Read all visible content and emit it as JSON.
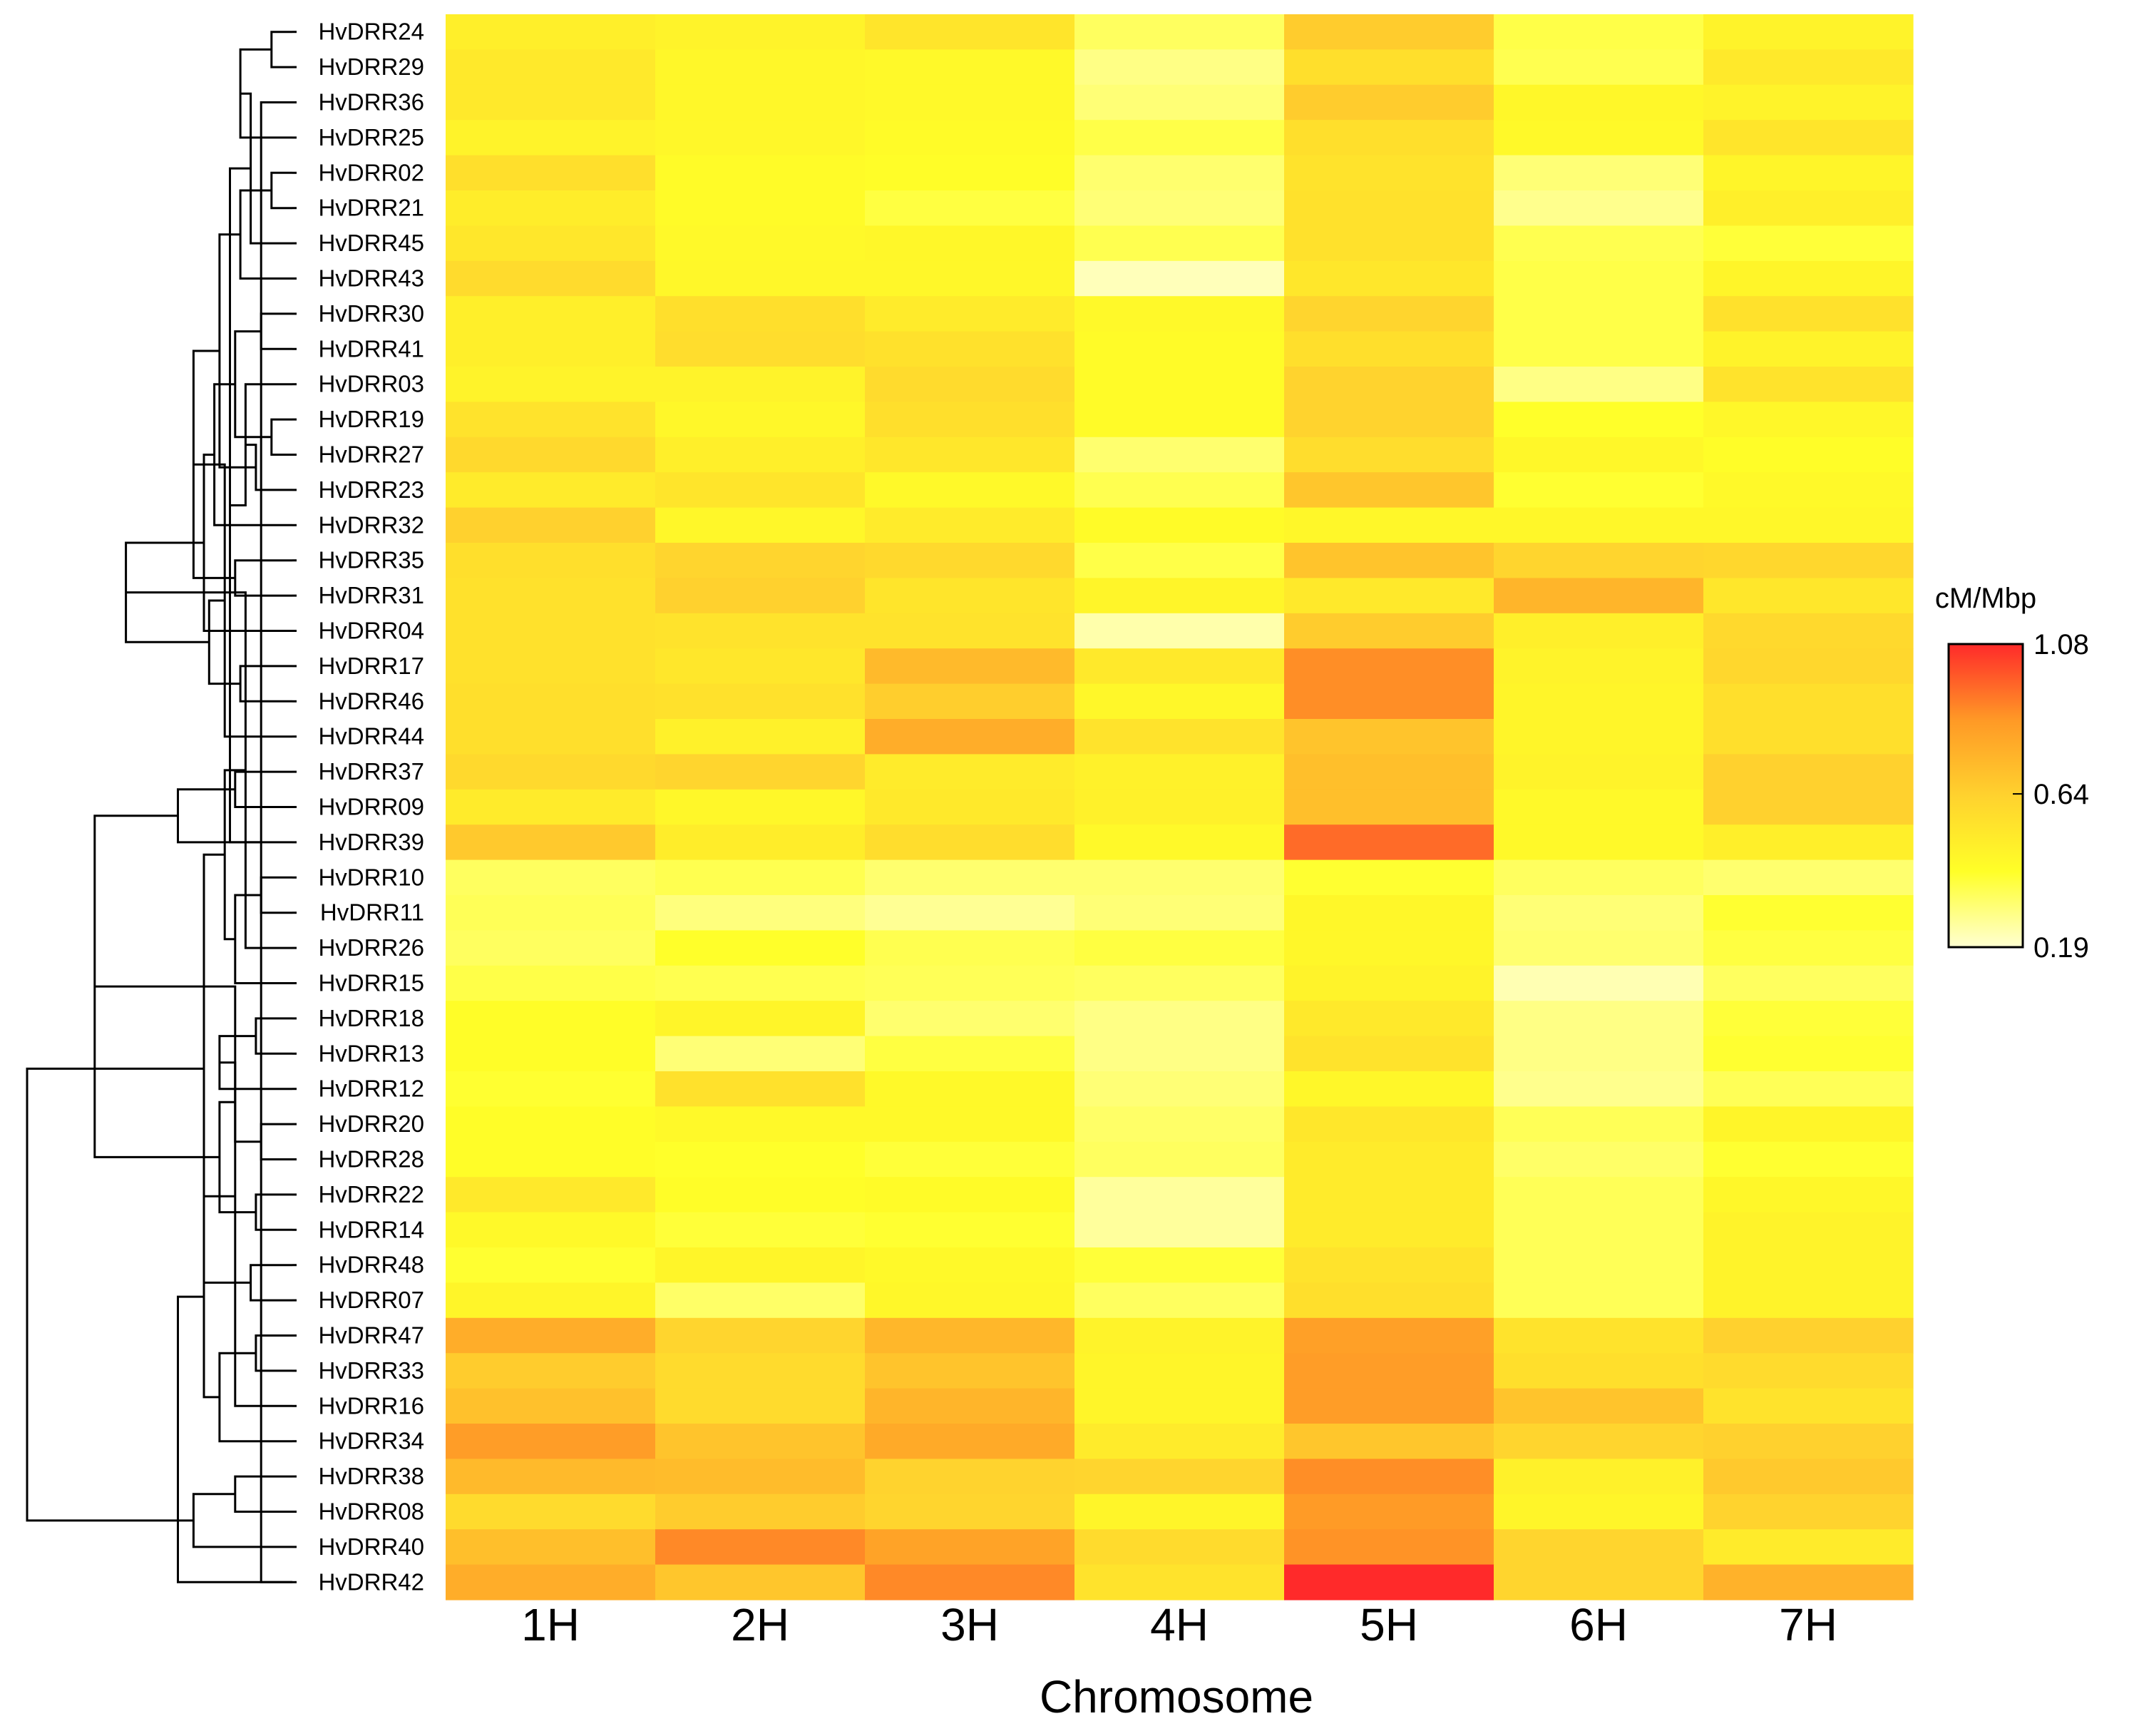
{
  "chart_data": {
    "type": "heatmap",
    "xlabel": "Chromosome",
    "columns": [
      "1H",
      "2H",
      "3H",
      "4H",
      "5H",
      "6H",
      "7H"
    ],
    "rows": [
      "HvDRR24",
      "HvDRR29",
      "HvDRR36",
      "HvDRR25",
      "HvDRR02",
      "HvDRR21",
      "HvDRR45",
      "HvDRR43",
      "HvDRR30",
      "HvDRR41",
      "HvDRR03",
      "HvDRR19",
      "HvDRR27",
      "HvDRR23",
      "HvDRR32",
      "HvDRR35",
      "HvDRR31",
      "HvDRR04",
      "HvDRR17",
      "HvDRR46",
      "HvDRR44",
      "HvDRR37",
      "HvDRR09",
      "HvDRR39",
      "HvDRR10",
      "HvDRR11",
      "HvDRR26",
      "HvDRR15",
      "HvDRR18",
      "HvDRR13",
      "HvDRR12",
      "HvDRR20",
      "HvDRR28",
      "HvDRR22",
      "HvDRR14",
      "HvDRR48",
      "HvDRR07",
      "HvDRR47",
      "HvDRR33",
      "HvDRR16",
      "HvDRR34",
      "HvDRR38",
      "HvDRR08",
      "HvDRR40",
      "HvDRR42"
    ],
    "values": [
      [
        0.49,
        0.47,
        0.54,
        0.34,
        0.66,
        0.37,
        0.47
      ],
      [
        0.52,
        0.45,
        0.44,
        0.29,
        0.57,
        0.36,
        0.52
      ],
      [
        0.52,
        0.45,
        0.44,
        0.31,
        0.66,
        0.45,
        0.47
      ],
      [
        0.47,
        0.45,
        0.43,
        0.37,
        0.57,
        0.44,
        0.54
      ],
      [
        0.57,
        0.43,
        0.42,
        0.32,
        0.55,
        0.31,
        0.46
      ],
      [
        0.5,
        0.43,
        0.38,
        0.31,
        0.56,
        0.28,
        0.49
      ],
      [
        0.53,
        0.44,
        0.45,
        0.36,
        0.56,
        0.36,
        0.39
      ],
      [
        0.59,
        0.45,
        0.45,
        0.22,
        0.53,
        0.37,
        0.46
      ],
      [
        0.49,
        0.57,
        0.51,
        0.44,
        0.62,
        0.37,
        0.56
      ],
      [
        0.49,
        0.58,
        0.56,
        0.43,
        0.57,
        0.37,
        0.47
      ],
      [
        0.47,
        0.47,
        0.59,
        0.43,
        0.63,
        0.29,
        0.55
      ],
      [
        0.55,
        0.45,
        0.57,
        0.43,
        0.63,
        0.41,
        0.45
      ],
      [
        0.6,
        0.49,
        0.53,
        0.32,
        0.58,
        0.45,
        0.42
      ],
      [
        0.51,
        0.54,
        0.44,
        0.36,
        0.68,
        0.4,
        0.44
      ],
      [
        0.64,
        0.45,
        0.51,
        0.43,
        0.45,
        0.45,
        0.45
      ],
      [
        0.57,
        0.62,
        0.6,
        0.37,
        0.69,
        0.62,
        0.61
      ],
      [
        0.56,
        0.64,
        0.54,
        0.46,
        0.52,
        0.75,
        0.53
      ],
      [
        0.56,
        0.55,
        0.55,
        0.24,
        0.66,
        0.49,
        0.6
      ],
      [
        0.56,
        0.53,
        0.73,
        0.52,
        0.88,
        0.47,
        0.61
      ],
      [
        0.57,
        0.56,
        0.65,
        0.45,
        0.88,
        0.46,
        0.57
      ],
      [
        0.57,
        0.48,
        0.78,
        0.55,
        0.69,
        0.46,
        0.57
      ],
      [
        0.6,
        0.62,
        0.51,
        0.48,
        0.71,
        0.47,
        0.64
      ],
      [
        0.51,
        0.45,
        0.52,
        0.48,
        0.71,
        0.44,
        0.64
      ],
      [
        0.67,
        0.5,
        0.58,
        0.44,
        0.95,
        0.44,
        0.49
      ],
      [
        0.34,
        0.36,
        0.32,
        0.32,
        0.4,
        0.34,
        0.32
      ],
      [
        0.35,
        0.3,
        0.27,
        0.31,
        0.45,
        0.31,
        0.4
      ],
      [
        0.34,
        0.41,
        0.36,
        0.38,
        0.45,
        0.32,
        0.38
      ],
      [
        0.37,
        0.36,
        0.35,
        0.34,
        0.47,
        0.23,
        0.34
      ],
      [
        0.42,
        0.46,
        0.32,
        0.29,
        0.52,
        0.29,
        0.39
      ],
      [
        0.42,
        0.31,
        0.38,
        0.29,
        0.55,
        0.29,
        0.4
      ],
      [
        0.4,
        0.56,
        0.44,
        0.31,
        0.45,
        0.28,
        0.35
      ],
      [
        0.42,
        0.44,
        0.44,
        0.33,
        0.53,
        0.35,
        0.46
      ],
      [
        0.42,
        0.41,
        0.39,
        0.34,
        0.51,
        0.33,
        0.4
      ],
      [
        0.52,
        0.42,
        0.43,
        0.26,
        0.51,
        0.35,
        0.45
      ],
      [
        0.44,
        0.39,
        0.4,
        0.26,
        0.51,
        0.35,
        0.47
      ],
      [
        0.4,
        0.46,
        0.44,
        0.39,
        0.55,
        0.35,
        0.47
      ],
      [
        0.46,
        0.33,
        0.45,
        0.34,
        0.57,
        0.35,
        0.47
      ],
      [
        0.78,
        0.62,
        0.74,
        0.47,
        0.83,
        0.55,
        0.64
      ],
      [
        0.66,
        0.59,
        0.69,
        0.46,
        0.84,
        0.57,
        0.59
      ],
      [
        0.7,
        0.59,
        0.75,
        0.46,
        0.84,
        0.69,
        0.55
      ],
      [
        0.84,
        0.69,
        0.79,
        0.51,
        0.68,
        0.62,
        0.64
      ],
      [
        0.73,
        0.72,
        0.63,
        0.62,
        0.88,
        0.48,
        0.67
      ],
      [
        0.59,
        0.66,
        0.62,
        0.46,
        0.85,
        0.46,
        0.63
      ],
      [
        0.71,
        0.89,
        0.82,
        0.59,
        0.87,
        0.62,
        0.51
      ],
      [
        0.78,
        0.68,
        0.89,
        0.55,
        1.08,
        0.62,
        0.76
      ]
    ],
    "colorbar": {
      "title": "cM/Mbp",
      "min": 0.19,
      "max": 1.08,
      "ticks": [
        "1.08",
        "0.64",
        "0.19"
      ],
      "tick_values": [
        1.08,
        0.64,
        0.19
      ],
      "colors": [
        "#ffffd1",
        "#ffff28",
        "#ffd22e",
        "#ff9926",
        "#ff2a2a"
      ]
    },
    "dendrogram": {
      "leaf_order": [
        "HvDRR24",
        "HvDRR29",
        "HvDRR36",
        "HvDRR25",
        "HvDRR02",
        "HvDRR21",
        "HvDRR45",
        "HvDRR43",
        "HvDRR30",
        "HvDRR41",
        "HvDRR03",
        "HvDRR19",
        "HvDRR27",
        "HvDRR23",
        "HvDRR32",
        "HvDRR35",
        "HvDRR31",
        "HvDRR04",
        "HvDRR17",
        "HvDRR46",
        "HvDRR44",
        "HvDRR37",
        "HvDRR09",
        "HvDRR39",
        "HvDRR10",
        "HvDRR11",
        "HvDRR26",
        "HvDRR15",
        "HvDRR18",
        "HvDRR13",
        "HvDRR12",
        "HvDRR20",
        "HvDRR28",
        "HvDRR22",
        "HvDRR14",
        "HvDRR48",
        "HvDRR07",
        "HvDRR47",
        "HvDRR33",
        "HvDRR16",
        "HvDRR34",
        "HvDRR38",
        "HvDRR08",
        "HvDRR40",
        "HvDRR42"
      ],
      "merges": [
        [
          0,
          1,
          0.02
        ],
        [
          44,
          2,
          0.03
        ],
        [
          45,
          3,
          0.05
        ],
        [
          4,
          5,
          0.02
        ],
        [
          47,
          6,
          0.04
        ],
        [
          48,
          7,
          0.05
        ],
        [
          46,
          49,
          0.06
        ],
        [
          8,
          9,
          0.03
        ],
        [
          51,
          10,
          0.045
        ],
        [
          11,
          12,
          0.02
        ],
        [
          53,
          13,
          0.035
        ],
        [
          52,
          54,
          0.055
        ],
        [
          50,
          55,
          0.07
        ],
        [
          56,
          14,
          0.075
        ],
        [
          15,
          16,
          0.055
        ],
        [
          58,
          17,
          0.085
        ],
        [
          57,
          59,
          0.095
        ],
        [
          18,
          19,
          0.05
        ],
        [
          61,
          20,
          0.065
        ],
        [
          21,
          22,
          0.055
        ],
        [
          62,
          63,
          0.08
        ],
        [
          64,
          23,
          0.11
        ],
        [
          60,
          65,
          0.16
        ],
        [
          24,
          25,
          0.03
        ],
        [
          67,
          26,
          0.045
        ],
        [
          68,
          27,
          0.055
        ],
        [
          28,
          29,
          0.035
        ],
        [
          69,
          70,
          0.065
        ],
        [
          71,
          30,
          0.07
        ],
        [
          31,
          32,
          0.03
        ],
        [
          33,
          34,
          0.035
        ],
        [
          73,
          74,
          0.055
        ],
        [
          35,
          36,
          0.04
        ],
        [
          75,
          76,
          0.07
        ],
        [
          72,
          77,
          0.085
        ],
        [
          66,
          78,
          0.19
        ],
        [
          37,
          38,
          0.035
        ],
        [
          80,
          39,
          0.055
        ],
        [
          81,
          40,
          0.07
        ],
        [
          41,
          42,
          0.055
        ],
        [
          82,
          83,
          0.085
        ],
        [
          84,
          43,
          0.095
        ],
        [
          85,
          44,
          0.11
        ],
        [
          79,
          86,
          0.255
        ]
      ]
    }
  }
}
